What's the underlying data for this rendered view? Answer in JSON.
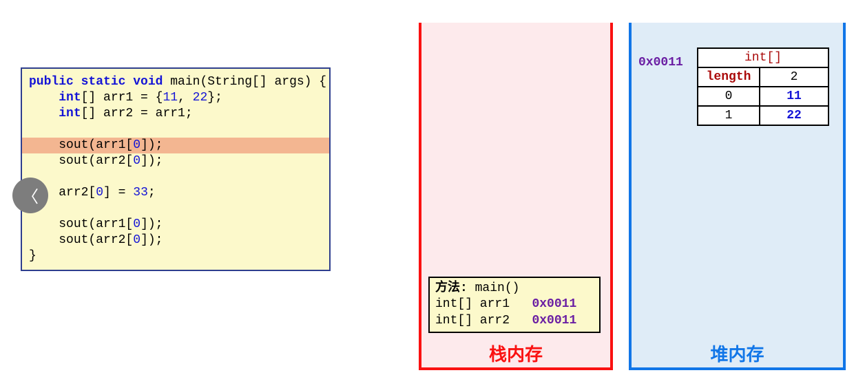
{
  "code": {
    "background_color": "#fcf9cb",
    "border_color": "#2e3e8e",
    "highlight_color": "#f3b691",
    "keyword_color": "#1414d6",
    "number_color": "#1414d6",
    "text_color": "#000000",
    "font_size": 18,
    "line1_kw": "public static void",
    "line1_name": " main(String[] args) {",
    "line2_kw": "int",
    "line2_rest": "[] arr1 = {",
    "line2_n1": "11",
    "line2_sep": ", ",
    "line2_n2": "22",
    "line2_end": "};",
    "line3_kw": "int",
    "line3_rest": "[] arr2 = arr1;",
    "line4_sout": "sout(arr1[",
    "line4_idx": "0",
    "line4_end": "]);",
    "line5_sout": "sout(arr2[",
    "line5_idx": "0",
    "line5_end": "]);",
    "line6_stmt": "arr2[",
    "line6_idx": "0",
    "line6_mid": "] = ",
    "line6_val": "33",
    "line6_end": ";",
    "line7_sout": "sout(arr1[",
    "line7_idx": "0",
    "line7_end": "]);",
    "line8_sout": "sout(arr2[",
    "line8_idx": "0",
    "line8_end": "]);",
    "line9_close": "}"
  },
  "stack": {
    "border_color": "#fa1111",
    "background_color": "#fdeaec",
    "label": "栈内存",
    "label_color": "#fa1111",
    "frame": {
      "background_color": "#fcf9cb",
      "border_color": "#000000",
      "header_prefix": "方法: ",
      "header_name": "main()",
      "row1_type": "int[] arr1",
      "row1_addr": "0x0011",
      "row2_type": "int[] arr2",
      "row2_addr": "0x0011",
      "addr_color": "#6a1ea3"
    }
  },
  "heap": {
    "border_color": "#1176e8",
    "background_color": "#dfecf7",
    "label": "堆内存",
    "label_color": "#1176e8",
    "address": "0x0011",
    "address_color": "#6a1ea3",
    "table": {
      "type_label": "int[]",
      "type_color": "#aa0a0a",
      "length_label": "length",
      "length_value": "2",
      "idx0": "0",
      "val0": "11",
      "idx1": "1",
      "val1": "22",
      "value_color": "#1414d6",
      "border_color": "#000000",
      "background_color": "#ffffff"
    }
  },
  "nav": {
    "glyph": "〈"
  }
}
